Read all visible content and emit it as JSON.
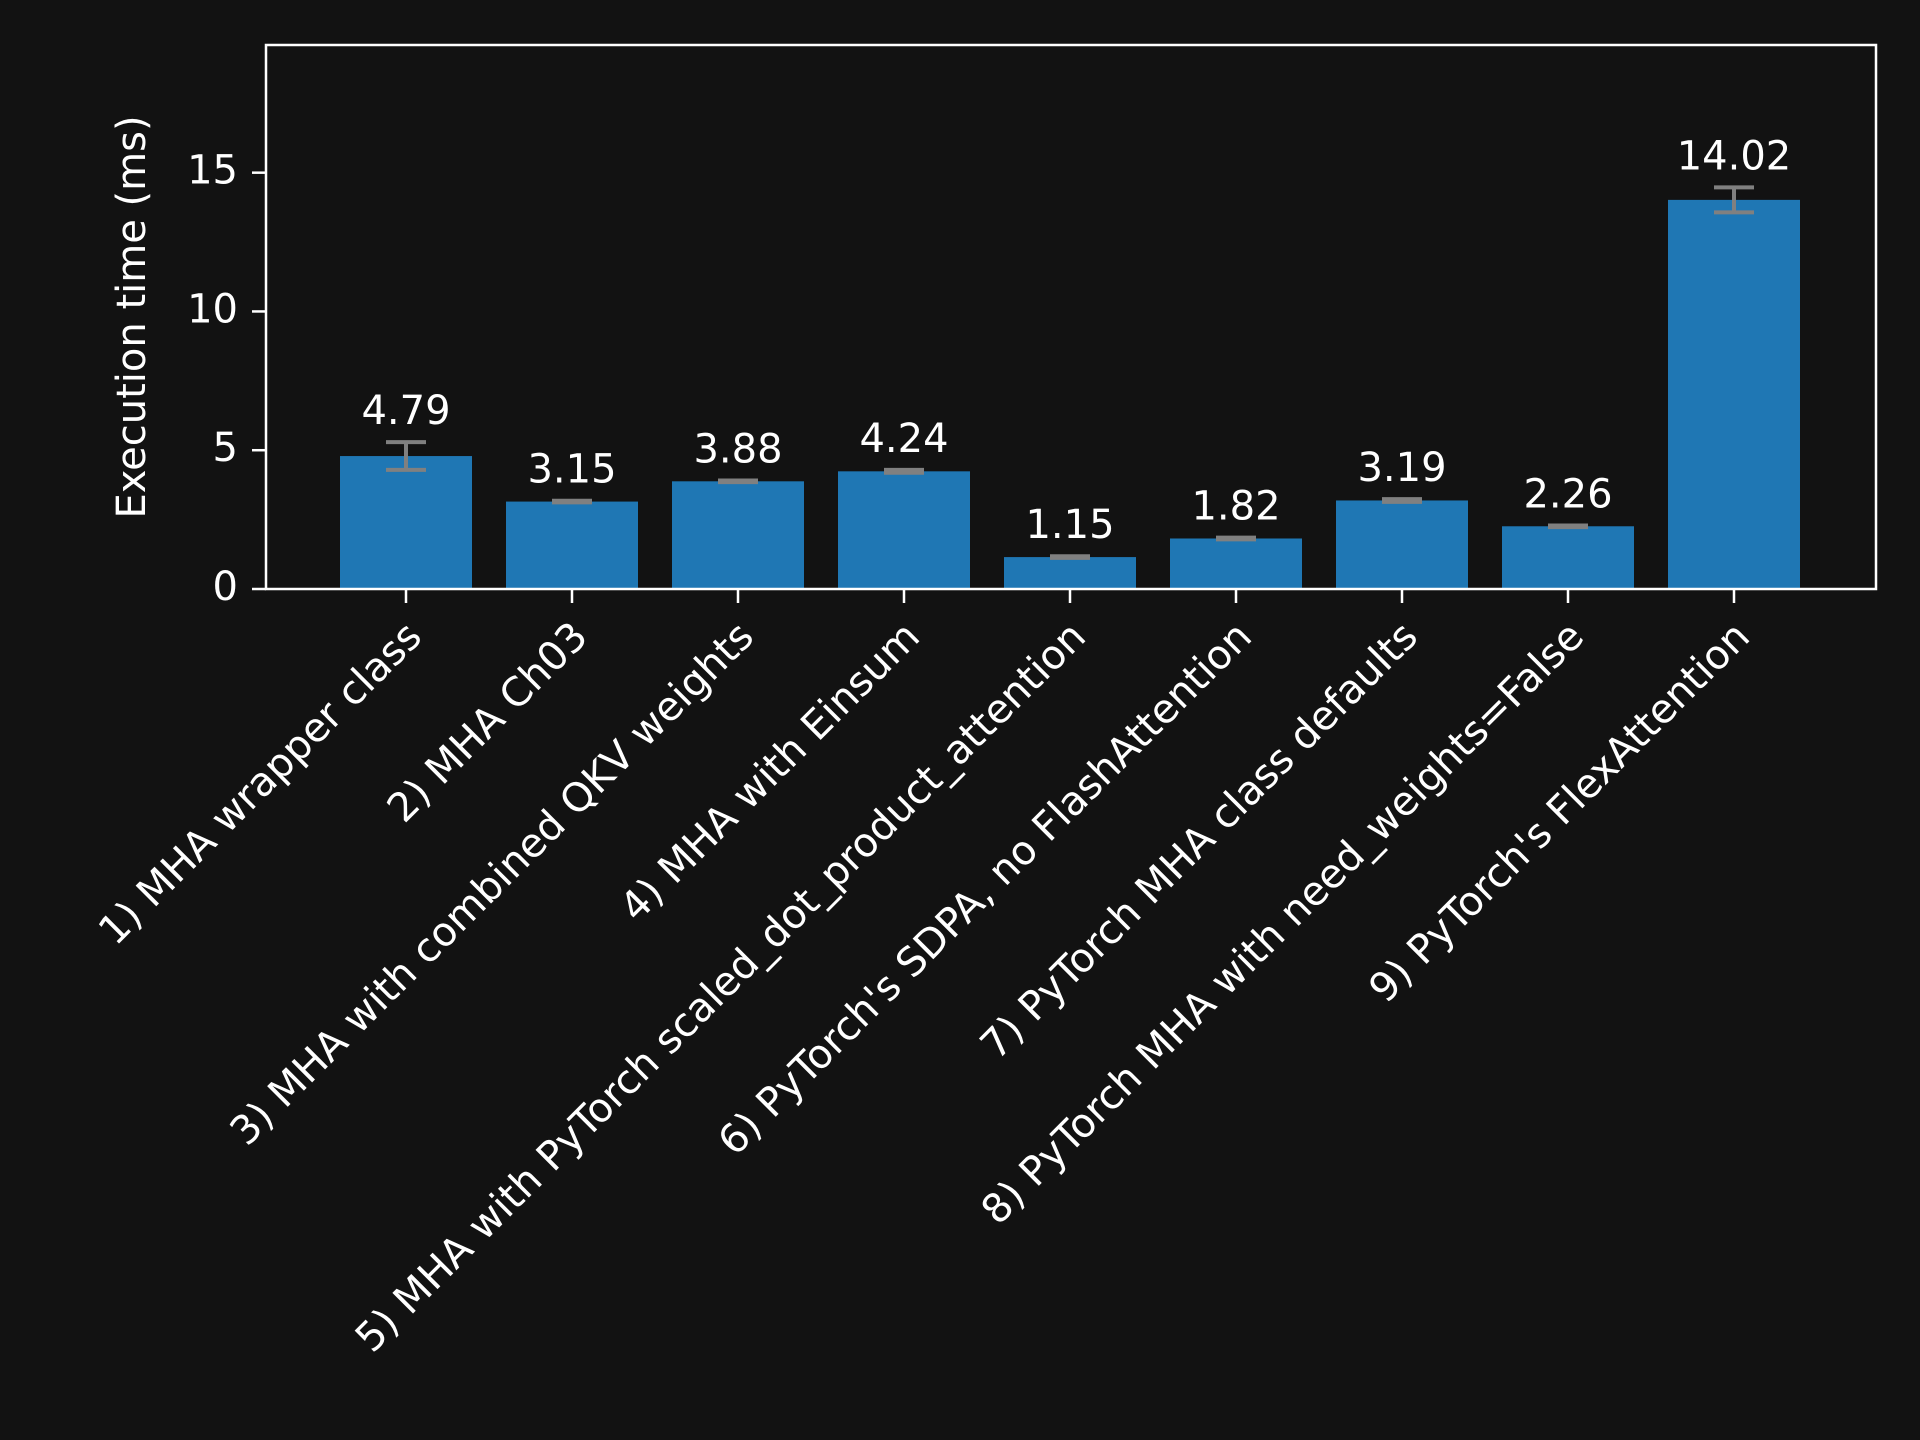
{
  "chart_data": {
    "type": "bar",
    "title": "",
    "xlabel": "",
    "ylabel": "Execution time (ms)",
    "ylim": [
      0,
      19.6
    ],
    "yticks": [
      0,
      5,
      10,
      15
    ],
    "grid": false,
    "categories": [
      "1) MHA wrapper class",
      "2) MHA Ch03",
      "3) MHA with combined QKV weights",
      "4) MHA with Einsum",
      "5) MHA with PyTorch scaled_dot_product_attention",
      "6) PyTorch's SDPA, no FlashAttention",
      "7) PyTorch MHA class defaults",
      "8) PyTorch MHA with need_weights=False",
      "9) PyTorch's FlexAttention"
    ],
    "values": [
      4.79,
      3.15,
      3.88,
      4.24,
      1.15,
      1.82,
      3.19,
      2.26,
      14.02
    ],
    "value_labels": [
      "4.79",
      "3.15",
      "3.88",
      "4.24",
      "1.15",
      "1.82",
      "3.19",
      "2.26",
      "14.02"
    ],
    "errors": [
      0.5,
      0.03,
      0.03,
      0.05,
      0.03,
      0.03,
      0.05,
      0.03,
      0.45
    ],
    "colors": {
      "background": "#121212",
      "bar": "#1f77b4",
      "error_bar": "#808080",
      "axis": "#ffffff",
      "text": "#ffffff"
    }
  }
}
